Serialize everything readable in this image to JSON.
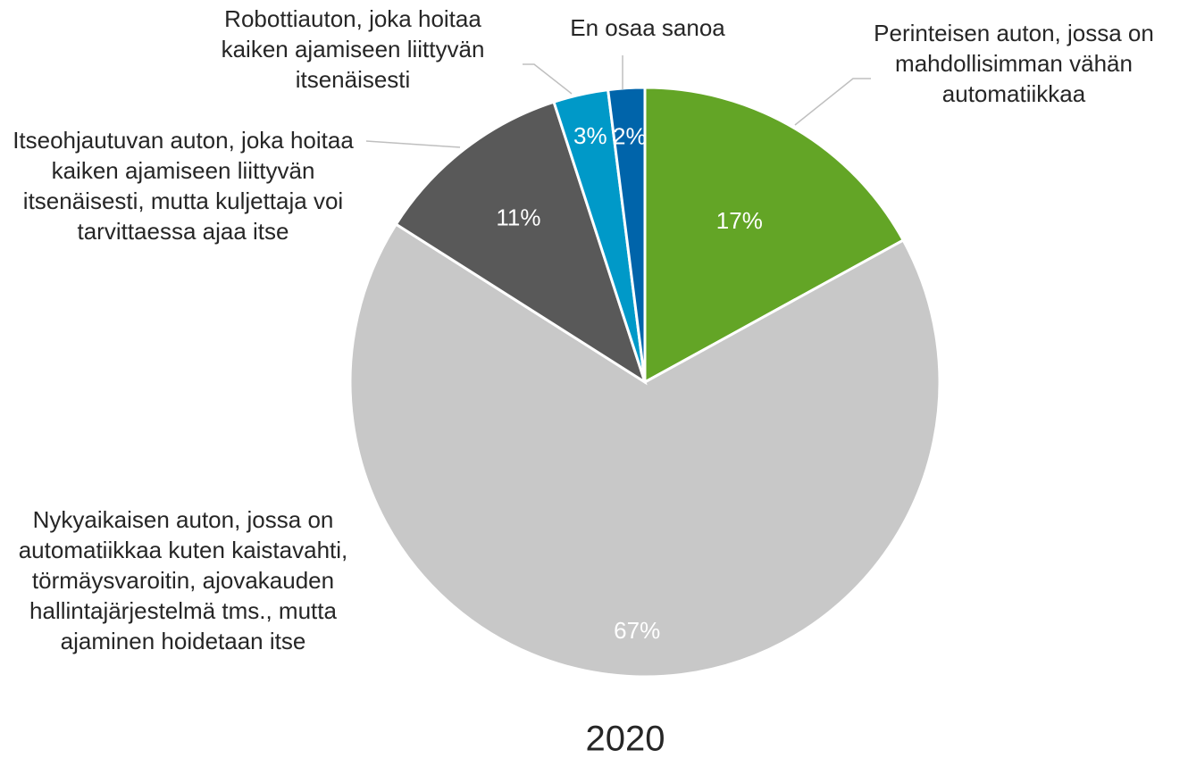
{
  "chart_data": {
    "type": "pie",
    "title": "2020",
    "categories": [
      "Perinteisen auton, jossa on mahdollisimman vähän automatiikkaa",
      "Nykyaikaisen auton, jossa on automatiikkaa kuten kaistavahti, törmäysvaroitin, ajovakauden hallintajärjestelmä tms., mutta ajaminen hoidetaan itse",
      "Itseohjautuvan auton, joka hoitaa kaiken ajamiseen liittyvän itsenäisesti, mutta kuljettaja voi tarvittaessa ajaa itse",
      "Robottiauton, joka hoitaa kaiken ajamiseen liittyvän itsenäisesti",
      "En osaa sanoa"
    ],
    "values": [
      17,
      67,
      11,
      3,
      2
    ],
    "value_labels": [
      "17%",
      "67%",
      "11%",
      "3%",
      "2%"
    ],
    "colors": [
      "#63a526",
      "#c8c8c8",
      "#595959",
      "#0099c8",
      "#0064aa"
    ]
  }
}
